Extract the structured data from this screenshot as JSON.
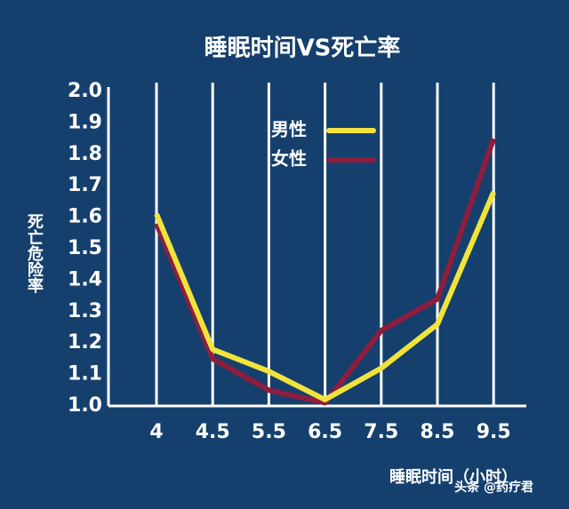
{
  "chart_data": {
    "type": "line",
    "title": "睡眠时间VS死亡率",
    "x_label": "睡眠时间（小时）",
    "y_label": "死亡危险率",
    "categories": [
      "4",
      "4.5",
      "5.5",
      "6.5",
      "7.5",
      "8.5",
      "9.5"
    ],
    "series": [
      {
        "name": "男性",
        "color": "#f2e33c",
        "values": [
          1.61,
          1.18,
          1.11,
          1.02,
          1.12,
          1.26,
          1.68
        ]
      },
      {
        "name": "女性",
        "color": "#8e1d3e",
        "values": [
          1.58,
          1.15,
          1.05,
          1.01,
          1.24,
          1.34,
          1.85
        ]
      }
    ],
    "ylim": [
      1.0,
      2.0
    ],
    "yticks": [
      {
        "value": 1.0,
        "label": "1.0"
      },
      {
        "value": 1.1,
        "label": "1.1"
      },
      {
        "value": 1.2,
        "label": "1.2"
      },
      {
        "value": 1.3,
        "label": "1.3"
      },
      {
        "value": 1.4,
        "label": "1.4"
      },
      {
        "value": 1.5,
        "label": "1.5"
      },
      {
        "value": 1.6,
        "label": "1.6"
      },
      {
        "value": 1.7,
        "label": "1.7"
      },
      {
        "value": 1.8,
        "label": "1.8"
      },
      {
        "value": 1.9,
        "label": "1.9"
      },
      {
        "value": 2.0,
        "label": "2.0"
      }
    ],
    "watermark": "头条 @药疗君"
  }
}
